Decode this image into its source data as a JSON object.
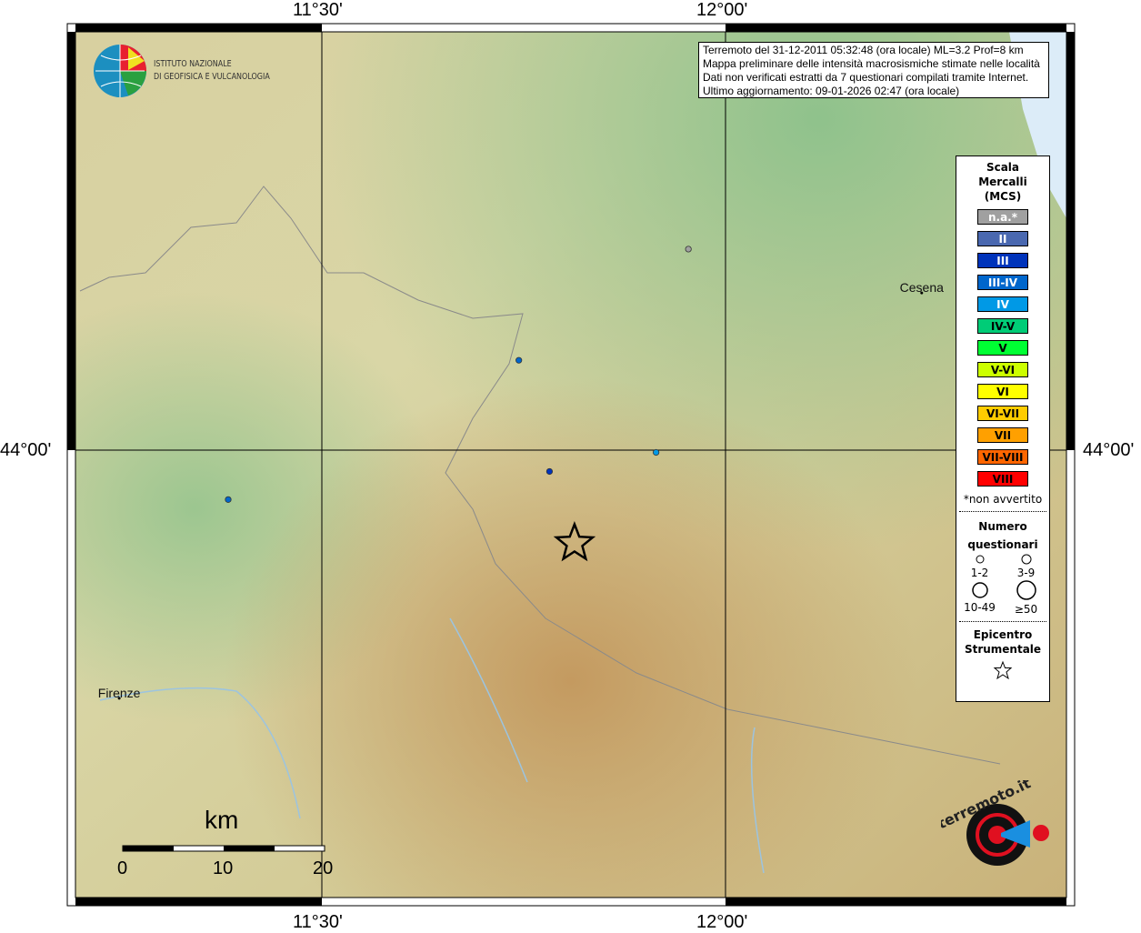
{
  "map": {
    "grid_lon": [
      11.5,
      12.0
    ],
    "grid_lat": [
      44.0
    ],
    "labels": {
      "top": [
        "11°30'",
        "12°00'"
      ],
      "bottom": [
        "11°30'",
        "12°00'"
      ],
      "left": "44°00'",
      "right": "44°00'"
    },
    "cities": [
      {
        "name": "Cesena",
        "lon": 12.243,
        "lat": 44.14
      },
      {
        "name": "Firenze",
        "lon": 11.249,
        "lat": 43.779
      }
    ],
    "observations": [
      {
        "lon": 11.954,
        "lat": 44.179,
        "intensity": "n.a.*",
        "color": "#a0a0a0",
        "size": "1-2"
      },
      {
        "lon": 11.744,
        "lat": 44.08,
        "intensity": "III-IV",
        "color": "#0066cc",
        "size": "1-2"
      },
      {
        "lon": 11.782,
        "lat": 43.981,
        "intensity": "III",
        "color": "#0033bb",
        "size": "1-2"
      },
      {
        "lon": 11.914,
        "lat": 43.998,
        "intensity": "IV",
        "color": "#0099e6",
        "size": "1-2"
      },
      {
        "lon": 11.384,
        "lat": 43.956,
        "intensity": "III-IV",
        "color": "#0066cc",
        "size": "1-2"
      }
    ],
    "epicenter": {
      "lon": 11.813,
      "lat": 43.917
    },
    "scalebar": {
      "unit": "km",
      "ticks": [
        "0",
        "10",
        "20"
      ]
    }
  },
  "info": {
    "lines": [
      "Terremoto del 31-12-2011 05:32:48 (ora locale) ML=3.2 Prof=8 km",
      "Mappa preliminare delle intensità macrosismiche stimate nelle località",
      "Dati non verificati estratti da 7 questionari compilati tramite Internet.",
      "Ultimo aggiornamento: 09-01-2026 02:47 (ora locale)"
    ]
  },
  "legend": {
    "title": [
      "Scala",
      "Mercalli",
      "(MCS)"
    ],
    "scale": [
      {
        "label": "n.a.*",
        "color": "#a0a0a0",
        "text": "#fff"
      },
      {
        "label": "II",
        "color": "#4a68b0",
        "text": "#fff"
      },
      {
        "label": "III",
        "color": "#0033bb",
        "text": "#fff"
      },
      {
        "label": "III-IV",
        "color": "#0066cc",
        "text": "#fff"
      },
      {
        "label": "IV",
        "color": "#0099e6",
        "text": "#fff"
      },
      {
        "label": "IV-V",
        "color": "#00cc77",
        "text": "#000"
      },
      {
        "label": "V",
        "color": "#00ff33",
        "text": "#000"
      },
      {
        "label": "V-VI",
        "color": "#ccff00",
        "text": "#000"
      },
      {
        "label": "VI",
        "color": "#ffff00",
        "text": "#000"
      },
      {
        "label": "VI-VII",
        "color": "#ffcc00",
        "text": "#000"
      },
      {
        "label": "VII",
        "color": "#ffa000",
        "text": "#000"
      },
      {
        "label": "VII-VIII",
        "color": "#ff6600",
        "text": "#000"
      },
      {
        "label": "VIII",
        "color": "#ff0000",
        "text": "#000"
      }
    ],
    "note": "*non avvertito",
    "count_title": [
      "Numero",
      "questionari"
    ],
    "counts": [
      "1-2",
      "3-9",
      "10-49",
      "≥50"
    ],
    "epicenter_title": [
      "Epicentro",
      "Strumentale"
    ]
  },
  "logos": {
    "ingv": [
      "ISTITUTO NAZIONALE",
      "DI GEOFISICA E VULCANOLOGIA"
    ],
    "hsit": "www.haisentitoilterremoto.it"
  }
}
